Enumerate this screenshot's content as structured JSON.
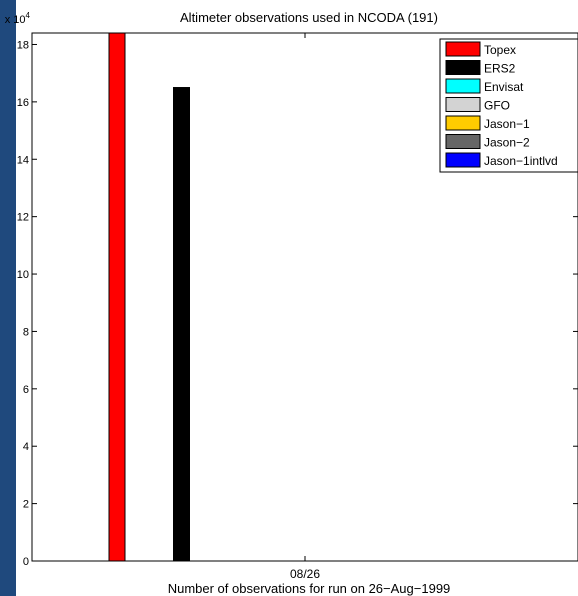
{
  "chart_data": {
    "type": "bar",
    "title": "Altimeter observations used in NCODA (191)",
    "xlabel": "Number of observations for run on 26−Aug−1999",
    "ylabel": "",
    "y_multiplier_label": "x 10",
    "y_multiplier_exponent": "4",
    "x_tick_labels": [
      "08/26"
    ],
    "ylim": [
      0,
      18.4
    ],
    "y_ticks": [
      0,
      2,
      4,
      6,
      8,
      10,
      12,
      14,
      16,
      18
    ],
    "y_tick_labels": [
      "0",
      "2",
      "4",
      "6",
      "8",
      "10",
      "12",
      "14",
      "16",
      "18"
    ],
    "legend_position": "top-right",
    "series": [
      {
        "name": "Topex",
        "color": "#ff0000",
        "value": 18.4
      },
      {
        "name": "ERS2",
        "color": "#000000",
        "value": 16.5
      },
      {
        "name": "Envisat",
        "color": "#00ffff",
        "value": 0
      },
      {
        "name": "GFO",
        "color": "#d3d3d3",
        "value": 0
      },
      {
        "name": "Jason−1",
        "color": "#ffcc00",
        "value": 0
      },
      {
        "name": "Jason−2",
        "color": "#666666",
        "value": 0
      },
      {
        "name": "Jason−1intlvd",
        "color": "#0000ff",
        "value": 0
      }
    ]
  }
}
